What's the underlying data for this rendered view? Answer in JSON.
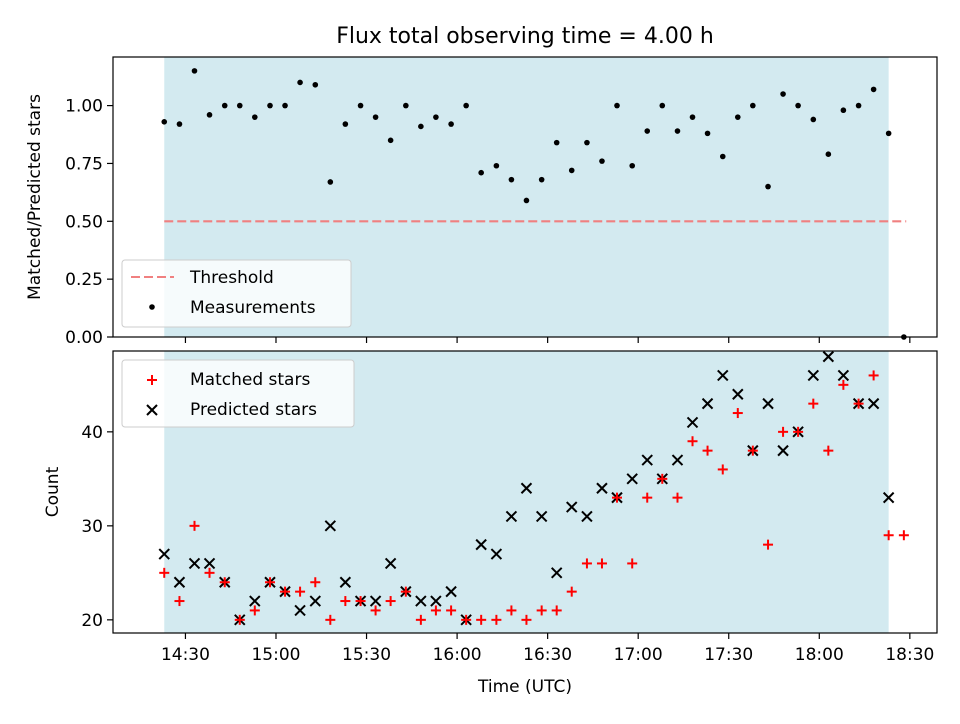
{
  "figure_title": "Flux total observing time = 4.00 h",
  "colors": {
    "shade": "#d3eaf0",
    "threshold": "#f08080",
    "measurement": "#000000",
    "matched": "#ff0000",
    "predicted": "#000000"
  },
  "chart_data": [
    {
      "type": "scatter",
      "title": "Flux total observing time = 4.00 h",
      "ylabel": "Matched/Predicted stars",
      "ylim": [
        0,
        1.21
      ],
      "yticks": [
        0.0,
        0.25,
        0.5,
        0.75,
        1.0
      ],
      "ytick_labels": [
        "0.00",
        "0.25",
        "0.50",
        "0.75",
        "1.00"
      ],
      "xlim": [
        14.1,
        18.65
      ],
      "shaded_interval": [
        14.383,
        18.383
      ],
      "threshold": 0.5,
      "legend": {
        "position": "lower-left",
        "entries": [
          "Threshold",
          "Measurements"
        ]
      },
      "series": [
        {
          "name": "Measurements",
          "x": [
            14.383,
            14.467,
            14.55,
            14.633,
            14.717,
            14.8,
            14.883,
            14.967,
            15.05,
            15.133,
            15.217,
            15.3,
            15.383,
            15.467,
            15.55,
            15.633,
            15.717,
            15.8,
            15.883,
            15.967,
            16.05,
            16.133,
            16.217,
            16.3,
            16.383,
            16.467,
            16.55,
            16.633,
            16.717,
            16.8,
            16.883,
            16.967,
            17.05,
            17.133,
            17.217,
            17.3,
            17.383,
            17.467,
            17.55,
            17.633,
            17.717,
            17.8,
            17.883,
            17.967,
            18.05,
            18.133,
            18.217,
            18.3,
            18.383,
            18.467
          ],
          "y": [
            0.93,
            0.92,
            1.15,
            0.96,
            1.0,
            1.0,
            0.95,
            1.0,
            1.0,
            1.1,
            1.09,
            0.67,
            0.92,
            1.0,
            0.95,
            0.85,
            1.0,
            0.91,
            0.95,
            0.92,
            1.0,
            0.71,
            0.74,
            0.68,
            0.59,
            0.68,
            0.84,
            0.72,
            0.84,
            0.76,
            1.0,
            0.74,
            0.89,
            1.0,
            0.89,
            0.95,
            0.88,
            0.78,
            0.95,
            1.0,
            0.65,
            1.05,
            1.0,
            0.94,
            0.79,
            0.98,
            1.0,
            1.07,
            0.88,
            0.0
          ]
        }
      ]
    },
    {
      "type": "scatter",
      "xlabel": "Time (UTC)",
      "ylabel": "Count",
      "ylim": [
        18.6,
        48.6
      ],
      "yticks": [
        20,
        30,
        40
      ],
      "ytick_labels": [
        "20",
        "30",
        "40"
      ],
      "xlim": [
        14.1,
        18.65
      ],
      "xticks": [
        14.5,
        15.0,
        15.5,
        16.0,
        16.5,
        17.0,
        17.5,
        18.0,
        18.5
      ],
      "xtick_labels": [
        "14:30",
        "15:00",
        "15:30",
        "16:00",
        "16:30",
        "17:00",
        "17:30",
        "18:00",
        "18:30"
      ],
      "shaded_interval": [
        14.383,
        18.383
      ],
      "legend": {
        "position": "upper-left",
        "entries": [
          "Matched stars",
          "Predicted stars"
        ]
      },
      "series": [
        {
          "name": "Matched stars",
          "x": [
            14.383,
            14.467,
            14.55,
            14.633,
            14.717,
            14.8,
            14.883,
            14.967,
            15.05,
            15.133,
            15.217,
            15.3,
            15.383,
            15.467,
            15.55,
            15.633,
            15.717,
            15.8,
            15.883,
            15.967,
            16.05,
            16.133,
            16.217,
            16.3,
            16.383,
            16.467,
            16.55,
            16.633,
            16.717,
            16.8,
            16.883,
            16.967,
            17.05,
            17.133,
            17.217,
            17.3,
            17.383,
            17.467,
            17.55,
            17.633,
            17.717,
            17.8,
            17.883,
            17.967,
            18.05,
            18.133,
            18.217,
            18.3,
            18.383,
            18.467
          ],
          "y": [
            25,
            22,
            30,
            25,
            24,
            20,
            21,
            24,
            23,
            23,
            24,
            20,
            22,
            22,
            21,
            22,
            23,
            20,
            21,
            21,
            20,
            20,
            20,
            21,
            20,
            21,
            21,
            23,
            26,
            26,
            33,
            26,
            33,
            35,
            33,
            39,
            38,
            36,
            42,
            38,
            28,
            40,
            40,
            43,
            38,
            45,
            43,
            46,
            29,
            29
          ]
        },
        {
          "name": "Predicted stars",
          "x": [
            14.383,
            14.467,
            14.55,
            14.633,
            14.717,
            14.8,
            14.883,
            14.967,
            15.05,
            15.133,
            15.217,
            15.3,
            15.383,
            15.467,
            15.55,
            15.633,
            15.717,
            15.8,
            15.883,
            15.967,
            16.05,
            16.133,
            16.217,
            16.3,
            16.383,
            16.467,
            16.55,
            16.633,
            16.717,
            16.8,
            16.883,
            16.967,
            17.05,
            17.133,
            17.217,
            17.3,
            17.383,
            17.467,
            17.55,
            17.633,
            17.717,
            17.8,
            17.883,
            17.967,
            18.05,
            18.133,
            18.217,
            18.3,
            18.383
          ],
          "y": [
            27,
            24,
            26,
            26,
            24,
            20,
            22,
            24,
            23,
            21,
            22,
            30,
            24,
            22,
            22,
            26,
            23,
            22,
            22,
            23,
            20,
            28,
            27,
            31,
            34,
            31,
            25,
            32,
            31,
            34,
            33,
            35,
            37,
            35,
            37,
            41,
            43,
            46,
            44,
            38,
            43,
            38,
            40,
            46,
            48,
            46,
            43,
            43,
            33
          ]
        }
      ]
    }
  ]
}
